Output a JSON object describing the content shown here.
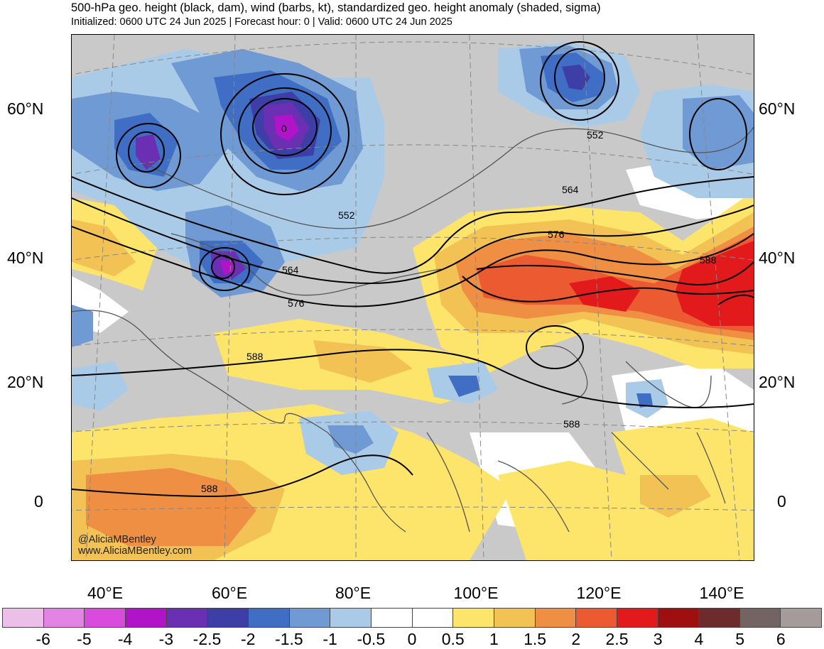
{
  "header": {
    "title": "500-hPa geo. height (black, dam), wind (barbs, kt), standardized geo. height anomaly (shaded, sigma)",
    "subtitle": "Initialized: 0600 UTC 24 Jun 2025 | Forecast hour: 0 | Valid: 0600 UTC 24 Jun 2025"
  },
  "map": {
    "lat_labels": [
      "60°N",
      "40°N",
      "20°N",
      "0"
    ],
    "lon_labels": [
      "40°E",
      "60°E",
      "80°E",
      "100°E",
      "120°E",
      "140°E"
    ],
    "contour_labels": [
      "552",
      "552",
      "564",
      "564",
      "576",
      "576",
      "588",
      "588",
      "588",
      "588",
      "0"
    ],
    "credit_line1": "@AliciaMBentley",
    "credit_line2": "www.AliciaMBentley.com",
    "fill_colors": {
      "land_gray": "#c9c9c9",
      "ocean_white": "#ffffff"
    }
  },
  "colorbar": {
    "labels": [
      "-6",
      "-5",
      "-4",
      "-3",
      "-2.5",
      "-2",
      "-1.5",
      "-1",
      "-0.5",
      "0",
      "0.5",
      "1",
      "1.5",
      "2",
      "2.5",
      "3",
      "4",
      "5",
      "6"
    ],
    "colors": [
      "#ebbfe8",
      "#e384e5",
      "#d94bdc",
      "#b113c9",
      "#6a2fb3",
      "#3e3fa6",
      "#3f6ec4",
      "#6f9ad3",
      "#a9cbe8",
      "#ffffff",
      "#ffffff",
      "#fde46b",
      "#f3c254",
      "#ef8f43",
      "#eb5a30",
      "#e31a1c",
      "#a00f0f",
      "#6e2b2b",
      "#736463",
      "#a59b9a"
    ]
  }
}
